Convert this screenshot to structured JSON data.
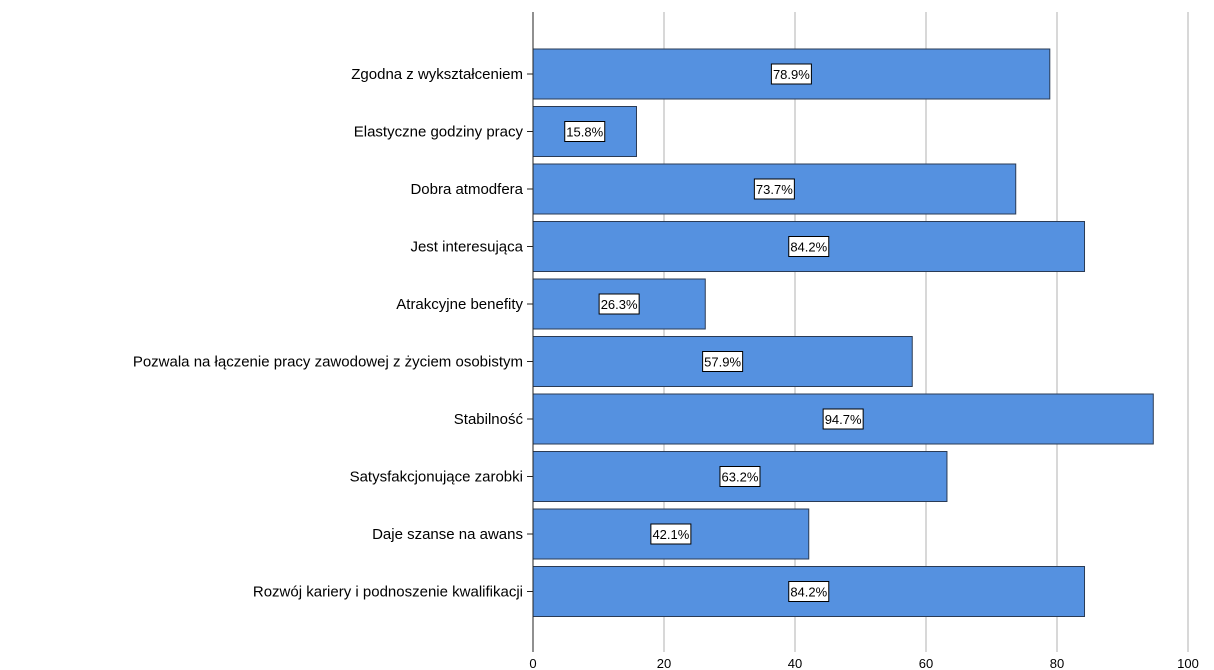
{
  "chart_data": {
    "type": "bar",
    "orientation": "horizontal",
    "categories": [
      "Zgodna z wykształceniem",
      "Elastyczne godziny pracy",
      "Dobra atmodfera",
      "Jest interesująca",
      "Atrakcyjne benefity",
      "Pozwala na łączenie pracy zawodowej z życiem osobistym",
      "Stabilność",
      "Satysfakcjonujące zarobki",
      "Daje szanse na awans",
      "Rozwój kariery i podnoszenie kwalifikacji"
    ],
    "values": [
      78.9,
      15.8,
      73.7,
      84.2,
      26.3,
      57.9,
      94.7,
      63.2,
      42.1,
      84.2
    ],
    "data_labels": [
      "78.9%",
      "15.8%",
      "73.7%",
      "84.2%",
      "26.3%",
      "57.9%",
      "94.7%",
      "63.2%",
      "42.1%",
      "84.2%"
    ],
    "xlim": [
      0,
      100
    ],
    "xticks": [
      0,
      20,
      40,
      60,
      80,
      100
    ],
    "tick_labels": [
      "0",
      "20",
      "40",
      "60",
      "80",
      "100"
    ],
    "grid": "vertical",
    "bar_color": "#5591e0",
    "bar_border_color": "#2a3b55",
    "grid_color": "#cccccc",
    "title": "",
    "xlabel": "",
    "ylabel": ""
  }
}
